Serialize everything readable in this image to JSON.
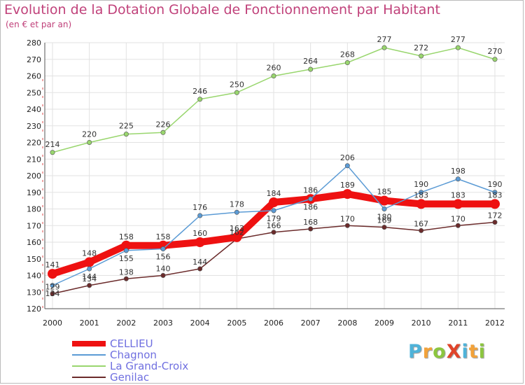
{
  "chart_data": {
    "type": "line",
    "title": "Evolution de la Dotation Globale de Fonctionnement par Habitant",
    "subtitle": "(en € et par an)",
    "xlabel": "",
    "ylabel": "",
    "x": [
      "2000",
      "2001",
      "2002",
      "2003",
      "2004",
      "2005",
      "2006",
      "2007",
      "2008",
      "2009",
      "2010",
      "2011",
      "2012"
    ],
    "yticks": [
      120,
      130,
      140,
      150,
      160,
      170,
      180,
      190,
      200,
      210,
      220,
      230,
      240,
      250,
      260,
      270,
      280
    ],
    "ylim": [
      120,
      280
    ],
    "grid": true,
    "legend_position": "bottom-left",
    "series": [
      {
        "name": "CELLIEU",
        "color": "#ee1111",
        "values": [
          141,
          148,
          158,
          158,
          160,
          163,
          184,
          186,
          189,
          185,
          183,
          183,
          183
        ]
      },
      {
        "name": "Chagnon",
        "color": "#5b9bd5",
        "values": [
          134,
          144,
          155,
          156,
          176,
          178,
          179,
          186,
          206,
          180,
          190,
          198,
          190
        ]
      },
      {
        "name": "La Grand-Croix",
        "color": "#99d66e",
        "values": [
          214,
          220,
          225,
          226,
          246,
          250,
          260,
          264,
          268,
          277,
          272,
          277,
          270
        ]
      },
      {
        "name": "Genilac",
        "color": "#6b2b2b",
        "values": [
          129,
          134,
          138,
          140,
          144,
          162,
          166,
          168,
          170,
          169,
          167,
          170,
          172
        ]
      }
    ]
  },
  "brand": {
    "text": "ProXiti",
    "letters": [
      "P",
      "r",
      "o",
      "X",
      "i",
      "t",
      "i"
    ],
    "colors": [
      "#4fb3d9",
      "#f2a23a",
      "#8cc63f",
      "#e0442a",
      "#4fb3d9",
      "#f2a23a",
      "#8cc63f"
    ]
  }
}
